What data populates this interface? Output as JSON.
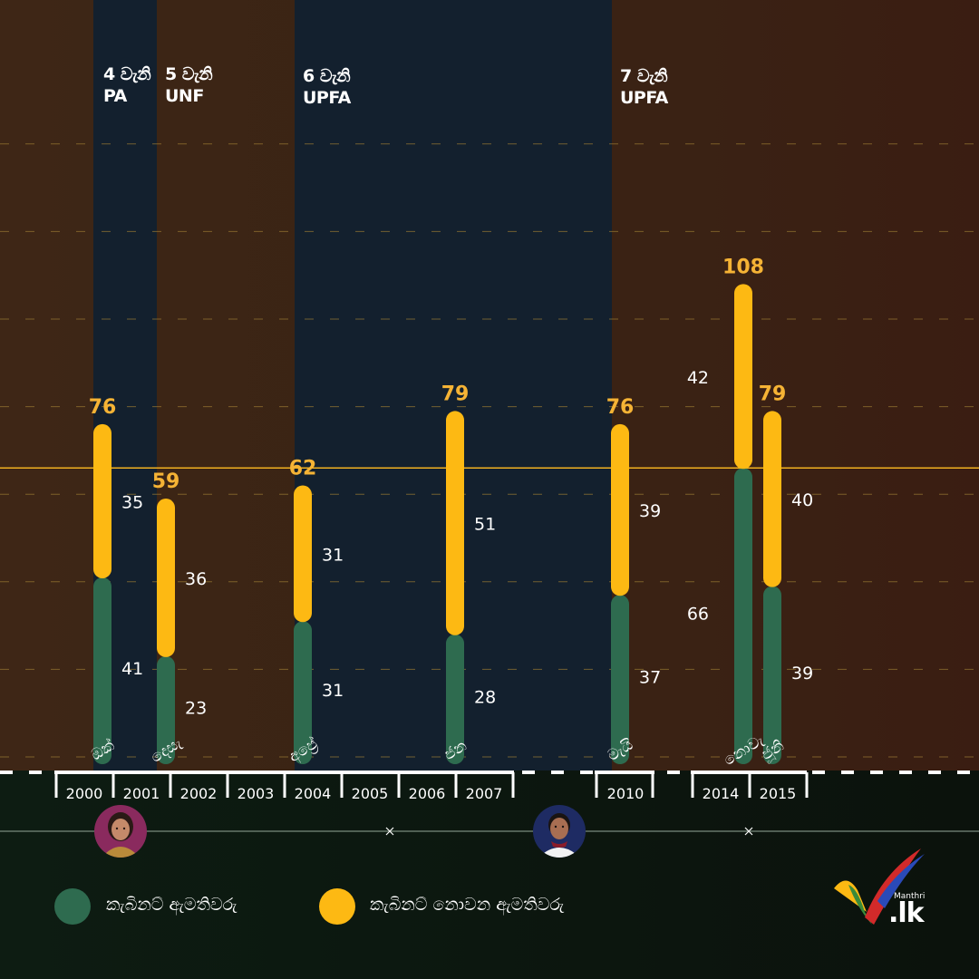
{
  "chart_data": {
    "type": "bar",
    "stacked": true,
    "ylim": [
      0,
      150
    ],
    "reference_line": 66,
    "terms": [
      {
        "number": "4 වැනි",
        "party": "PA",
        "from": "2000",
        "to": "2001"
      },
      {
        "number": "5 වැනි",
        "party": "UNF",
        "from": "2001",
        "to": "2004"
      },
      {
        "number": "6 වැනි",
        "party": "UPFA",
        "from": "2004",
        "to": "2010"
      },
      {
        "number": "7 වැනි",
        "party": "UPFA",
        "from": "2010",
        "to": "2015"
      }
    ],
    "years": [
      "2000",
      "2001",
      "2002",
      "2003",
      "2004",
      "2005",
      "2006",
      "2007",
      "2010",
      "2014",
      "2015"
    ],
    "bars": [
      {
        "year": "2000",
        "month": "ඔක්",
        "cabinet": 41,
        "non_cabinet": 35,
        "total": 76
      },
      {
        "year": "2001",
        "month": "දෙසැ",
        "cabinet": 23,
        "non_cabinet": 36,
        "total": 59
      },
      {
        "year": "2004",
        "month": "අප්‍රේ",
        "cabinet": 31,
        "non_cabinet": 31,
        "total": 62
      },
      {
        "year": "2007",
        "month": "ජන",
        "cabinet": 28,
        "non_cabinet": 51,
        "total": 79
      },
      {
        "year": "2010",
        "month": "මැයි",
        "cabinet": 37,
        "non_cabinet": 39,
        "total": 76
      },
      {
        "year": "2014",
        "month": "නොවැ",
        "cabinet": 66,
        "non_cabinet": 42,
        "total": 108
      },
      {
        "year": "2015",
        "month": "ජූනි",
        "cabinet": 39,
        "non_cabinet": 40,
        "total": 79
      }
    ],
    "series": [
      {
        "name": "කැබිනට් ඇමතිවරු",
        "key": "cabinet",
        "color": "#2e6b4f"
      },
      {
        "name": "කැබිනට් නොවන ඇමතිවරු",
        "key": "non_cabinet",
        "color": "#fdb913"
      }
    ]
  },
  "colors": {
    "cabinet": "#2e6b4f",
    "non_cabinet": "#fdb913",
    "total_label": "#f5b335",
    "term_band": "#13202e",
    "grid": "#9a7a33",
    "timeline_bg": "#0e1a12"
  },
  "legend": {
    "cabinet_label": "කැබිනට් ඇමතිවරු",
    "non_cabinet_label": "කැබිනට් නොවන ඇමතිවරු"
  },
  "logo": {
    "small_text": "Manthri",
    "big_text": ".lk"
  },
  "portraits": [
    {
      "icon": "portrait-woman-icon",
      "alt": "president-2000"
    },
    {
      "icon": "portrait-man-icon",
      "alt": "president-2010"
    }
  ]
}
